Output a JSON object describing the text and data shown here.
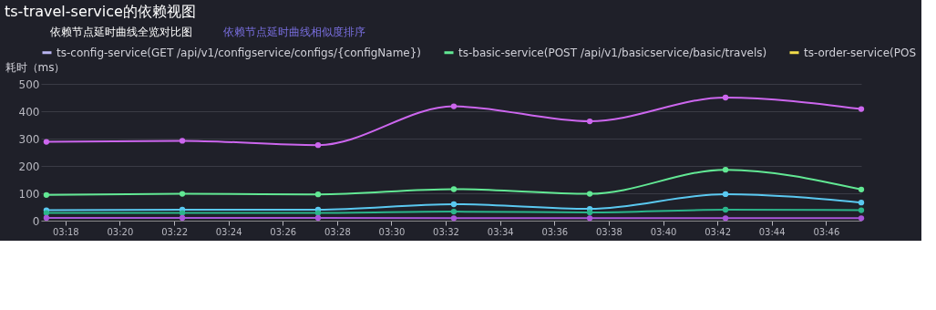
{
  "chart_data": {
    "type": "line",
    "title": "ts-travel-service的依赖视图",
    "annotations": [
      "依赖节点延时曲线全览对比图",
      "依赖节点延时曲线相似度排序"
    ],
    "ylabel": "耗时（ms）",
    "x": [
      3.2883,
      3.3717,
      3.455,
      3.5383,
      3.6217,
      3.705,
      3.7883
    ],
    "xlim": [
      3.285,
      3.7883
    ],
    "xticks": [
      {
        "value": 3.3,
        "label": "03:18"
      },
      {
        "value": 3.3333,
        "label": "03:20"
      },
      {
        "value": 3.3667,
        "label": "03:22"
      },
      {
        "value": 3.4,
        "label": "03:24"
      },
      {
        "value": 3.4333,
        "label": "03:26"
      },
      {
        "value": 3.4667,
        "label": "03:28"
      },
      {
        "value": 3.5,
        "label": "03:30"
      },
      {
        "value": 3.5333,
        "label": "03:32"
      },
      {
        "value": 3.5667,
        "label": "03:34"
      },
      {
        "value": 3.6,
        "label": "03:36"
      },
      {
        "value": 3.6333,
        "label": "03:38"
      },
      {
        "value": 3.6667,
        "label": "03:40"
      },
      {
        "value": 3.7,
        "label": "03:42"
      },
      {
        "value": 3.7333,
        "label": "03:44"
      },
      {
        "value": 3.7667,
        "label": "03:46"
      }
    ],
    "ylim": [
      0,
      500
    ],
    "yticks": [
      0,
      100,
      200,
      300,
      400,
      500
    ],
    "grid": "y",
    "legend": "top left",
    "marker": "circle",
    "line_style": "solid",
    "series": [
      {
        "name": "ts-config-service(GET /api/v1/configservice/configs/{configName})",
        "color": "#b9b4f0",
        "values": [
          null,
          null,
          null,
          null,
          null,
          null,
          null
        ]
      },
      {
        "name": "ts-basic-service(POST /api/v1/basicservice/basic/travels)",
        "color": "#62e894",
        "values": [
          94,
          98,
          96,
          115,
          98,
          186,
          114
        ]
      },
      {
        "name": "ts-order-service(POS",
        "color": "#f2dc4a",
        "values": [
          null,
          null,
          null,
          null,
          null,
          null,
          null
        ]
      },
      {
        "color": "#5ac8f0",
        "values": [
          38,
          40,
          40,
          60,
          43,
          97,
          66
        ]
      },
      {
        "color": "#2bb58a",
        "values": [
          28,
          28,
          28,
          33,
          30,
          40,
          38
        ]
      },
      {
        "color": "#cc66ee",
        "values": [
          288,
          292,
          276,
          418,
          363,
          450,
          408
        ]
      },
      {
        "color": "#a855d8",
        "values": [
          10,
          10,
          10,
          9,
          9,
          9,
          9
        ]
      }
    ]
  }
}
